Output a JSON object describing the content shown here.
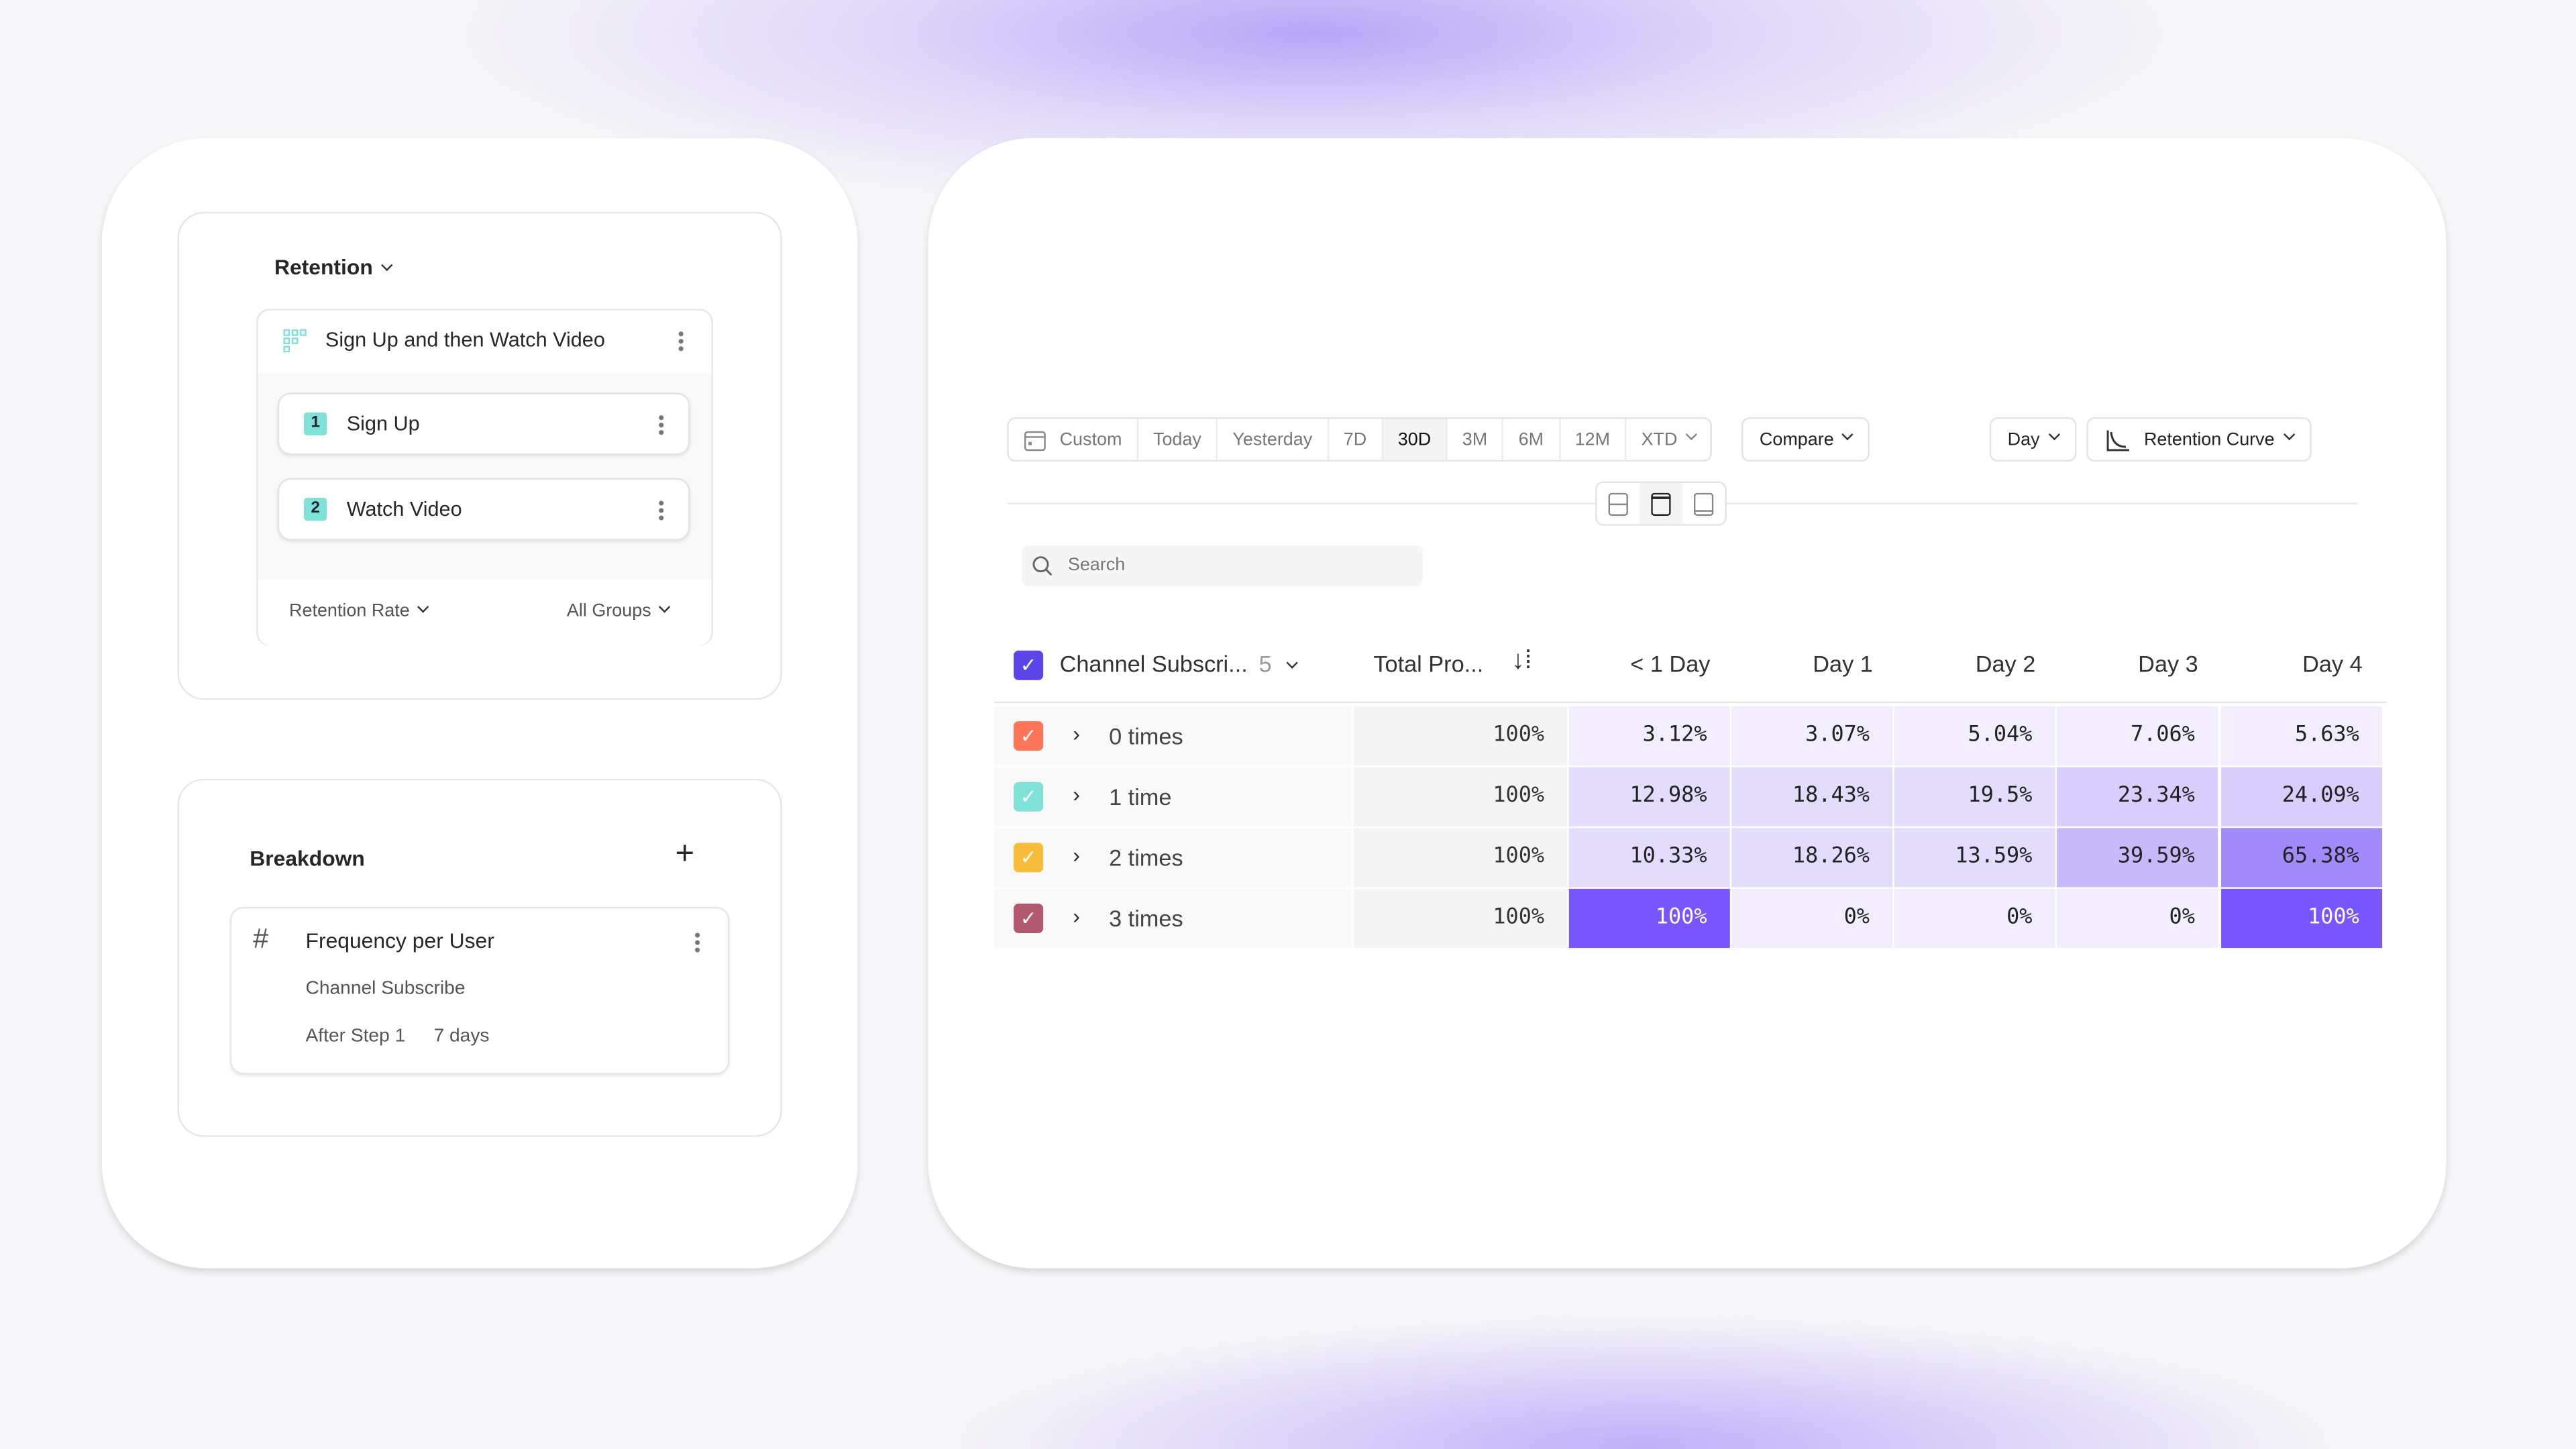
{
  "left": {
    "retention": {
      "title": "Retention",
      "group_name": "Sign Up and then Watch Video",
      "steps": [
        {
          "num": "1",
          "label": "Sign Up"
        },
        {
          "num": "2",
          "label": "Watch Video"
        }
      ],
      "metric": "Retention Rate",
      "groups": "All Groups"
    },
    "breakdown": {
      "title": "Breakdown",
      "item_title": "Frequency per User",
      "event": "Channel Subscribe",
      "step": "After Step 1",
      "window": "7 days"
    }
  },
  "toolbar": {
    "date_ranges": [
      "Custom",
      "Today",
      "Yesterday",
      "7D",
      "30D",
      "3M",
      "6M",
      "12M",
      "XTD"
    ],
    "selected_range": "30D",
    "compare": "Compare",
    "interval": "Day",
    "chart_type": "Retention Curve"
  },
  "search": {
    "placeholder": "Search"
  },
  "table": {
    "breakdown_header": "Channel Subscri...",
    "breakdown_count": "5",
    "columns": [
      "Total Pro...",
      "< 1 Day",
      "Day 1",
      "Day 2",
      "Day 3",
      "Day 4"
    ],
    "rows": [
      {
        "label": "0 times",
        "color": "#ff7557",
        "total": "100%",
        "values": [
          "3.12%",
          "3.07%",
          "5.04%",
          "7.06%",
          "5.63%"
        ]
      },
      {
        "label": "1 time",
        "color": "#80e1d9",
        "total": "100%",
        "values": [
          "12.98%",
          "18.43%",
          "19.5%",
          "23.34%",
          "24.09%"
        ]
      },
      {
        "label": "2 times",
        "color": "#f8bc3b",
        "total": "100%",
        "values": [
          "10.33%",
          "18.26%",
          "13.59%",
          "39.59%",
          "65.38%"
        ]
      },
      {
        "label": "3 times",
        "color": "#b2596e",
        "total": "100%",
        "values": [
          "100%",
          "0%",
          "0%",
          "0%",
          "100%"
        ]
      }
    ],
    "accent": "#5b45e8"
  }
}
